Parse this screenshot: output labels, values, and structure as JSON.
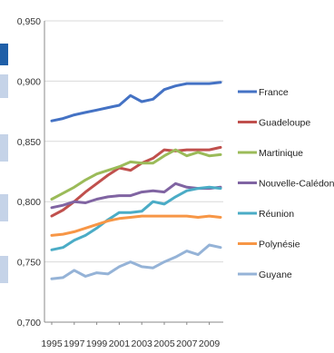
{
  "chart_data": {
    "type": "line",
    "title": "",
    "xlabel": "",
    "ylabel": "",
    "ylim": [
      0.7,
      0.95
    ],
    "y_ticks": [
      "0,700",
      "0,750",
      "0,800",
      "0,850",
      "0,900",
      "0,950"
    ],
    "x": [
      1995,
      1996,
      1997,
      1998,
      1999,
      2000,
      2001,
      2002,
      2003,
      2004,
      2005,
      2006,
      2007,
      2008,
      2009,
      2010
    ],
    "x_tick_labels": [
      "1995",
      "1997",
      "1999",
      "2001",
      "2003",
      "2005",
      "2007",
      "2009"
    ],
    "grid": "horizontal",
    "legend_position": "right",
    "series": [
      {
        "name": "France",
        "color": "#4472C4",
        "values": [
          0.867,
          0.869,
          0.872,
          0.874,
          0.876,
          0.878,
          0.88,
          0.888,
          0.883,
          0.885,
          0.893,
          0.896,
          0.898,
          0.898,
          0.898,
          0.899
        ]
      },
      {
        "name": "Guadeloupe",
        "color": "#C0504D",
        "values": [
          0.788,
          0.793,
          0.8,
          0.808,
          0.815,
          0.822,
          0.828,
          0.826,
          0.832,
          0.836,
          0.843,
          0.842,
          0.843,
          0.843,
          0.843,
          0.845
        ]
      },
      {
        "name": "Martinique",
        "color": "#9BBB59",
        "values": [
          0.802,
          0.807,
          0.812,
          0.818,
          0.823,
          0.826,
          0.829,
          0.833,
          0.832,
          0.832,
          0.838,
          0.843,
          0.838,
          0.841,
          0.838,
          0.839
        ]
      },
      {
        "name": "Nouvelle-Calédonie",
        "color": "#8064A2",
        "values": [
          0.795,
          0.797,
          0.8,
          0.799,
          0.802,
          0.804,
          0.805,
          0.805,
          0.808,
          0.809,
          0.808,
          0.815,
          0.812,
          0.811,
          0.811,
          0.812
        ]
      },
      {
        "name": "Réunion",
        "color": "#4BACC6",
        "values": [
          0.76,
          0.762,
          0.768,
          0.772,
          0.778,
          0.785,
          0.791,
          0.791,
          0.792,
          0.8,
          0.798,
          0.804,
          0.809,
          0.811,
          0.812,
          0.811
        ]
      },
      {
        "name": "Polynésie",
        "color": "#F79646",
        "values": [
          0.772,
          0.773,
          0.775,
          0.778,
          0.781,
          0.784,
          0.786,
          0.787,
          0.788,
          0.788,
          0.788,
          0.788,
          0.788,
          0.787,
          0.788,
          0.787
        ]
      },
      {
        "name": "Guyane",
        "color": "#95B3D7",
        "values": [
          0.736,
          0.737,
          0.743,
          0.738,
          0.741,
          0.74,
          0.746,
          0.75,
          0.746,
          0.745,
          0.75,
          0.754,
          0.759,
          0.756,
          0.764,
          0.762
        ]
      }
    ]
  }
}
